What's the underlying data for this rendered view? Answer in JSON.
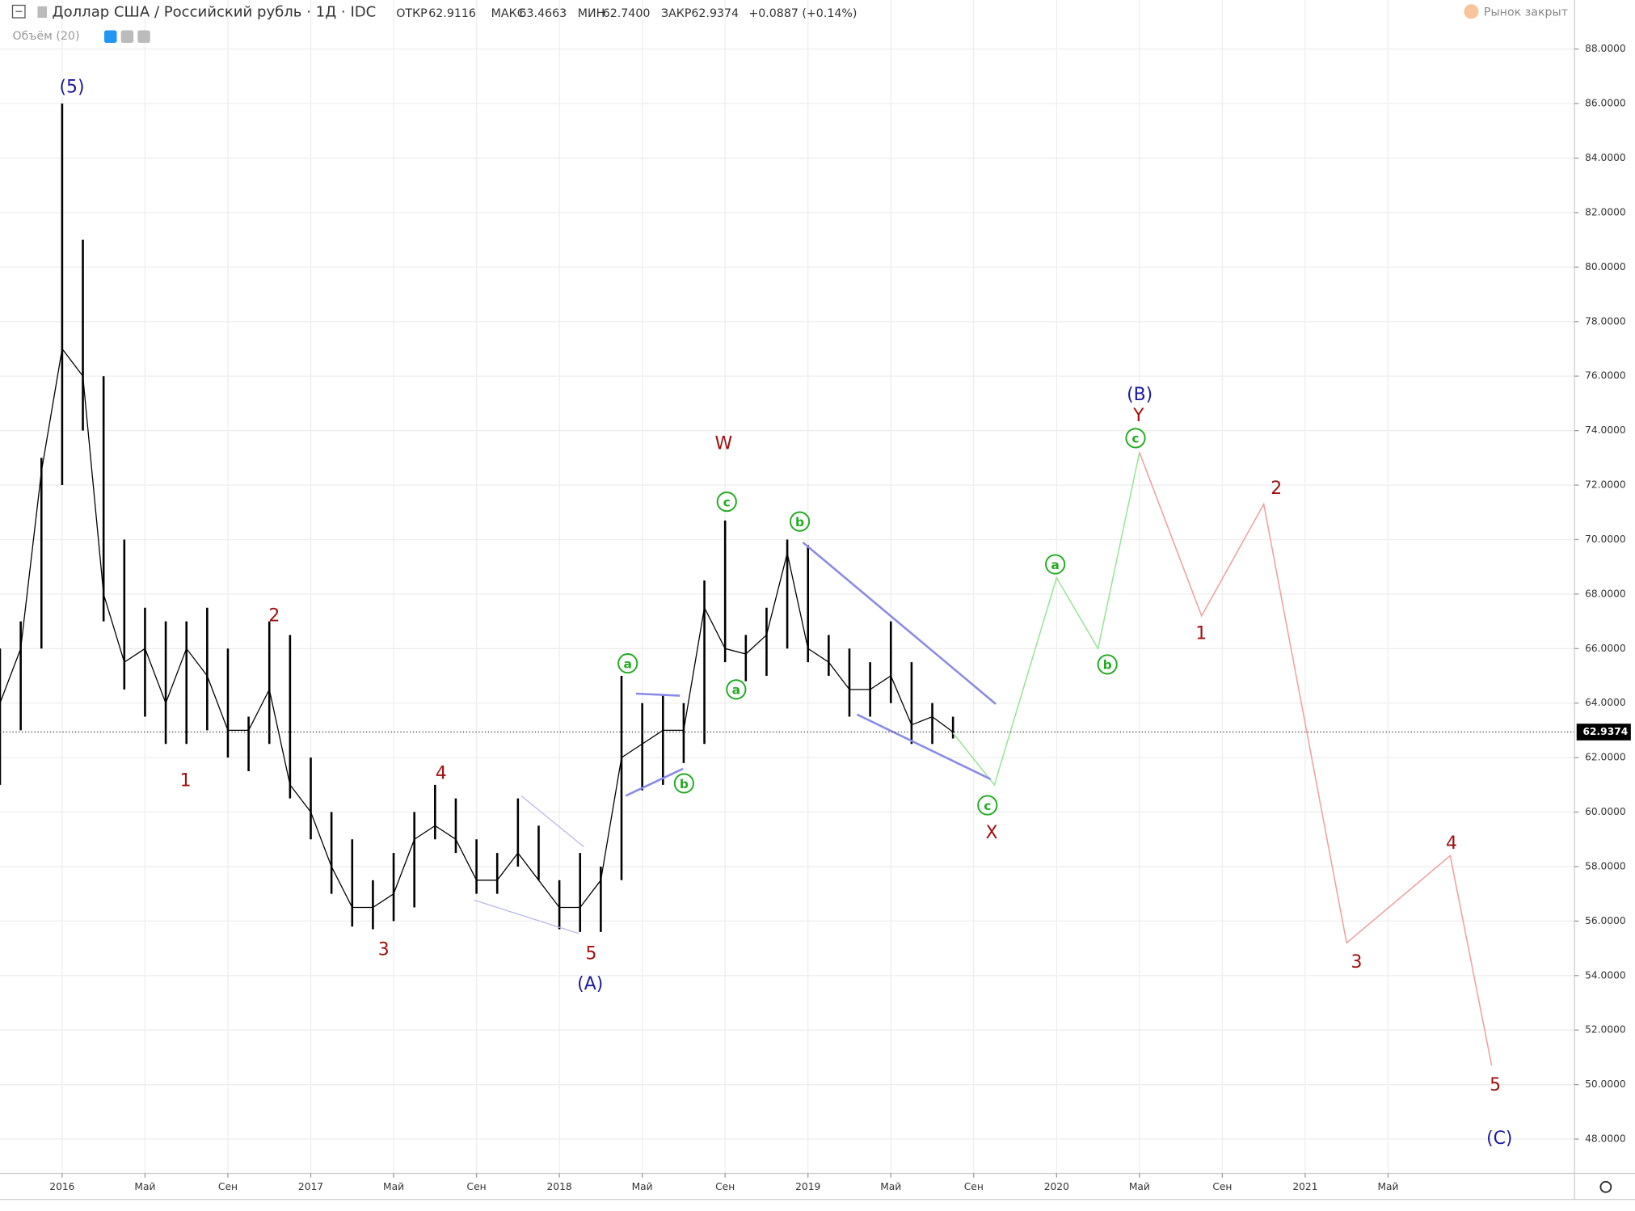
{
  "header": {
    "symbol": "Доллар США / Российский рубль · 1Д · IDC",
    "open_label": "ОТКР",
    "open": "62.9116",
    "high_label": "МАКС",
    "high": "63.4663",
    "low_label": "МИН",
    "low": "62.7400",
    "close_label": "ЗАКР",
    "close": "62.9374",
    "change": "+0.0887 (+0.14%)",
    "volume": "Объём (20)",
    "market_status": "Рынок закрыт"
  },
  "chart_data": {
    "type": "line",
    "x": [
      "2015-10",
      "2015-11",
      "2015-12",
      "2016-01",
      "2016-02",
      "2016-03",
      "2016-04",
      "2016-05",
      "2016-06",
      "2016-07",
      "2016-08",
      "2016-09",
      "2016-10",
      "2016-11",
      "2016-12",
      "2017-01",
      "2017-02",
      "2017-03",
      "2017-04",
      "2017-05",
      "2017-06",
      "2017-07",
      "2017-08",
      "2017-09",
      "2017-10",
      "2017-11",
      "2017-12",
      "2018-01",
      "2018-02",
      "2018-03",
      "2018-04",
      "2018-05",
      "2018-06",
      "2018-07",
      "2018-08",
      "2018-09",
      "2018-10",
      "2018-11",
      "2018-12",
      "2019-01",
      "2019-02",
      "2019-03",
      "2019-04",
      "2019-05",
      "2019-06",
      "2019-07",
      "2019-08"
    ],
    "series": [
      {
        "name": "USDRUB",
        "color": "#000000",
        "high": [
          66,
          67,
          73,
          86,
          81,
          76,
          70,
          67.5,
          67,
          67,
          67.5,
          66,
          63.5,
          67,
          66.5,
          62,
          60,
          59,
          57.5,
          58.5,
          60,
          61,
          60.5,
          59,
          58.5,
          60.5,
          59.5,
          57.5,
          58.5,
          58,
          65,
          64,
          64.3,
          64,
          68.5,
          70.7,
          66.5,
          67.5,
          70,
          69.8,
          66.5,
          66,
          65.5,
          67,
          65.5,
          64,
          63.5
        ],
        "low": [
          61,
          63,
          66,
          72,
          74,
          67,
          64.5,
          63.5,
          62.5,
          62.5,
          63,
          62,
          61.5,
          62.5,
          60.5,
          59,
          57,
          55.8,
          55.7,
          56,
          56.5,
          59,
          58.5,
          57,
          57,
          58,
          57.5,
          55.7,
          55.6,
          55.6,
          57.5,
          60.8,
          61,
          61.8,
          62.5,
          65.5,
          64.8,
          65,
          66,
          65.5,
          65,
          63.5,
          63.5,
          64,
          62.5,
          62.5,
          62.7
        ],
        "values": [
          64,
          66,
          72.5,
          77,
          76,
          68,
          65.5,
          66,
          64,
          66,
          65,
          63,
          63,
          64.5,
          61,
          60,
          58,
          56.5,
          56.5,
          57,
          59,
          59.5,
          59,
          57.5,
          57.5,
          58.5,
          57.5,
          56.5,
          56.5,
          57.5,
          62,
          62.5,
          63,
          63,
          67.5,
          66,
          65.8,
          66.5,
          69.5,
          66,
          65.5,
          64.5,
          64.5,
          65,
          63.2,
          63.5,
          62.9374
        ]
      }
    ],
    "projections": [
      {
        "color": "#9be39b",
        "x": [
          "2019-08",
          "2019-10",
          "2020-01",
          "2020-03",
          "2020-05"
        ],
        "values": [
          62.9,
          61,
          68.6,
          66,
          73.2
        ]
      },
      {
        "color": "#f2a0a0",
        "x": [
          "2020-05",
          "2020-08",
          "2020-11",
          "2021-03",
          "2021-08",
          "2021-10"
        ],
        "values": [
          73.2,
          67.2,
          71.3,
          55.2,
          58.4,
          50.7
        ]
      }
    ],
    "annotations": [
      {
        "text": "(5)",
        "color": "#1a1aa0"
      },
      {
        "text": "1",
        "color": "#a01010"
      },
      {
        "text": "2",
        "color": "#a01010"
      },
      {
        "text": "3",
        "color": "#a01010"
      },
      {
        "text": "4",
        "color": "#a01010"
      },
      {
        "text": "5",
        "color": "#a01010"
      },
      {
        "text": "(A)",
        "color": "#1a1aa0"
      },
      {
        "text": "a",
        "color": "#22aa22",
        "style": "circle"
      },
      {
        "text": "b",
        "color": "#22aa22",
        "style": "circle"
      },
      {
        "text": "c",
        "color": "#22aa22",
        "style": "circle"
      },
      {
        "text": "a",
        "color": "#22aa22",
        "style": "circle"
      },
      {
        "text": "W",
        "color": "#a01010"
      },
      {
        "text": "b",
        "color": "#22aa22",
        "style": "circle"
      },
      {
        "text": "c",
        "color": "#22aa22",
        "style": "circle"
      },
      {
        "text": "X",
        "color": "#a01010"
      },
      {
        "text": "a",
        "color": "#22aa22",
        "style": "circle"
      },
      {
        "text": "b",
        "color": "#22aa22",
        "style": "circle"
      },
      {
        "text": "c",
        "color": "#22aa22",
        "style": "circle"
      },
      {
        "text": "Y",
        "color": "#a01010"
      },
      {
        "text": "(B)",
        "color": "#1a1aa0"
      },
      {
        "text": "1",
        "color": "#a01010"
      },
      {
        "text": "2",
        "color": "#a01010"
      },
      {
        "text": "3",
        "color": "#a01010"
      },
      {
        "text": "4",
        "color": "#a01010"
      },
      {
        "text": "5",
        "color": "#a01010"
      },
      {
        "text": "(C)",
        "color": "#1a1aa0"
      }
    ],
    "last_price": 62.9374,
    "xlim": [
      "2015-10",
      "2022-02"
    ],
    "xticks": [
      {
        "value": "2016-01",
        "label": "2016"
      },
      {
        "value": "2016-05",
        "label": "Май"
      },
      {
        "value": "2016-09",
        "label": "Сен"
      },
      {
        "value": "2017-01",
        "label": "2017"
      },
      {
        "value": "2017-05",
        "label": "Май"
      },
      {
        "value": "2017-09",
        "label": "Сен"
      },
      {
        "value": "2018-01",
        "label": "2018"
      },
      {
        "value": "2018-05",
        "label": "Май"
      },
      {
        "value": "2018-09",
        "label": "Сен"
      },
      {
        "value": "2019-01",
        "label": "2019"
      },
      {
        "value": "2019-05",
        "label": "Май"
      },
      {
        "value": "2019-09",
        "label": "Сен"
      },
      {
        "value": "2020-01",
        "label": "2020"
      },
      {
        "value": "2020-05",
        "label": "Май"
      },
      {
        "value": "2020-09",
        "label": "Сен"
      },
      {
        "value": "2021-01",
        "label": "2021"
      },
      {
        "value": "2021-05",
        "label": "Май"
      }
    ],
    "ylim": [
      46.74,
      89.8
    ],
    "yticks": [
      {
        "value": 48,
        "label": "48.0000"
      },
      {
        "value": 50,
        "label": "50.0000"
      },
      {
        "value": 52,
        "label": "52.0000"
      },
      {
        "value": 54,
        "label": "54.0000"
      },
      {
        "value": 56,
        "label": "56.0000"
      },
      {
        "value": 58,
        "label": "58.0000"
      },
      {
        "value": 60,
        "label": "60.0000"
      },
      {
        "value": 62,
        "label": "62.0000"
      },
      {
        "value": 64,
        "label": "64.0000"
      },
      {
        "value": 66,
        "label": "66.0000"
      },
      {
        "value": 68,
        "label": "68.0000"
      },
      {
        "value": 70,
        "label": "70.0000"
      },
      {
        "value": 72,
        "label": "72.0000"
      },
      {
        "value": 74,
        "label": "74.0000"
      },
      {
        "value": 76,
        "label": "76.0000"
      },
      {
        "value": 78,
        "label": "78.0000"
      },
      {
        "value": 80,
        "label": "80.0000"
      },
      {
        "value": 82,
        "label": "82.0000"
      },
      {
        "value": 84,
        "label": "84.0000"
      },
      {
        "value": 86,
        "label": "86.0000"
      },
      {
        "value": 88,
        "label": "88.0000"
      }
    ],
    "grid": true
  }
}
